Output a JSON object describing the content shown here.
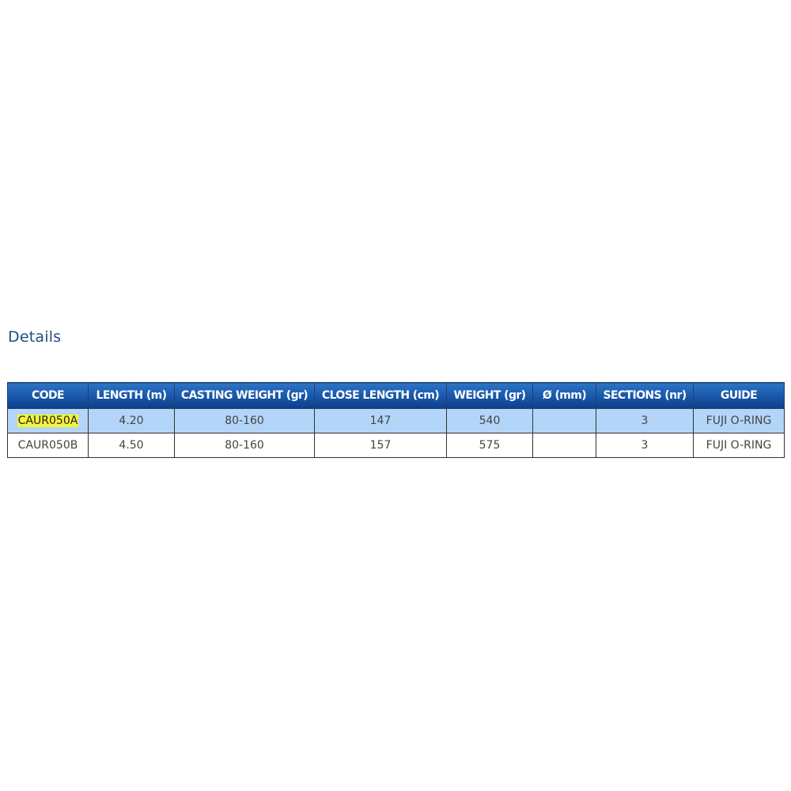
{
  "section_title": "Details",
  "table": {
    "headers": [
      "CODE",
      "LENGTH (m)",
      "CASTING WEIGHT (gr)",
      "CLOSE LENGTH (cm)",
      "WEIGHT (gr)",
      "Ø (mm)",
      "SECTIONS (nr)",
      "GUIDE"
    ],
    "rows": [
      [
        "CAUR050A",
        "4.20",
        "80-160",
        "147",
        "540",
        "",
        "3",
        "FUJI O-RING"
      ],
      [
        "CAUR050B",
        "4.50",
        "80-160",
        "157",
        "575",
        "",
        "3",
        "FUJI O-RING"
      ]
    ],
    "highlighted_row": 0
  },
  "colors": {
    "header_blue": "#1b5bae",
    "highlight_row": "#b3d5f7",
    "code_highlight": "#f5f23a",
    "title": "#1d4f7e"
  }
}
